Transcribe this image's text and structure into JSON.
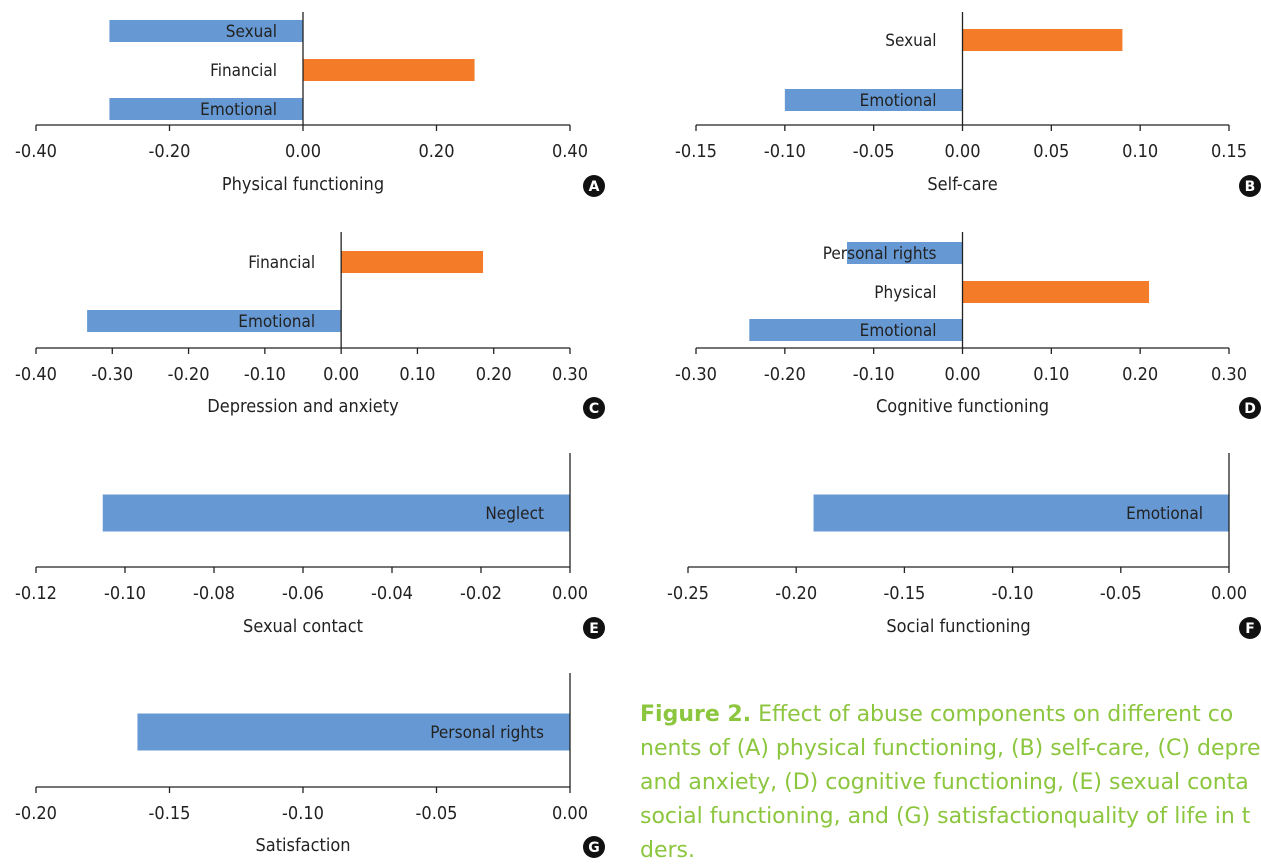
{
  "colors": {
    "negative": "#6699d3",
    "positive": "#f47c28",
    "axis": "#222222",
    "caption": "#8cc63f"
  },
  "chart_data": [
    {
      "panel": "A",
      "type": "bar",
      "orientation": "horizontal",
      "xlabel": "Physical functioning",
      "xlim": [
        -0.4,
        0.4
      ],
      "xticks": [
        -0.4,
        -0.2,
        0.0,
        0.2,
        0.4
      ],
      "xtick_labels": [
        "-0.40",
        "-0.20",
        "0.00",
        "0.20",
        "0.40"
      ],
      "categories": [
        "Sexual",
        "Financial",
        "Emotional"
      ],
      "values": [
        -0.29,
        0.257,
        -0.29
      ]
    },
    {
      "panel": "B",
      "type": "bar",
      "orientation": "horizontal",
      "xlabel": "Self-care",
      "xlim": [
        -0.15,
        0.15
      ],
      "xticks": [
        -0.15,
        -0.1,
        -0.05,
        0.0,
        0.05,
        0.1,
        0.15
      ],
      "xtick_labels": [
        "-0.15",
        "-0.10",
        "-0.05",
        "0.00",
        "0.05",
        "0.10",
        "0.15"
      ],
      "categories": [
        "Sexual",
        "Emotional"
      ],
      "values": [
        0.09,
        -0.1
      ]
    },
    {
      "panel": "C",
      "type": "bar",
      "orientation": "horizontal",
      "xlabel": "Depression and anxiety",
      "xlim": [
        -0.4,
        0.3
      ],
      "xticks": [
        -0.4,
        -0.3,
        -0.2,
        -0.1,
        0.0,
        0.1,
        0.2,
        0.3
      ],
      "xtick_labels": [
        "-0.40",
        "-0.30",
        "-0.20",
        "-0.10",
        "0.00",
        "0.10",
        "0.20",
        "0.30"
      ],
      "categories": [
        "Financial",
        "Emotional"
      ],
      "values": [
        0.186,
        -0.333
      ]
    },
    {
      "panel": "D",
      "type": "bar",
      "orientation": "horizontal",
      "xlabel": "Cognitive functioning",
      "xlim": [
        -0.3,
        0.3
      ],
      "xticks": [
        -0.3,
        -0.2,
        -0.1,
        0.0,
        0.1,
        0.2,
        0.3
      ],
      "xtick_labels": [
        "-0.30",
        "-0.20",
        "-0.10",
        "0.00",
        "0.10",
        "0.20",
        "0.30"
      ],
      "categories": [
        "Personal rights",
        "Physical",
        "Emotional"
      ],
      "values": [
        -0.13,
        0.21,
        -0.24
      ]
    },
    {
      "panel": "E",
      "type": "bar",
      "orientation": "horizontal",
      "xlabel": "Sexual contact",
      "xlim": [
        -0.12,
        0.0
      ],
      "xticks": [
        -0.12,
        -0.1,
        -0.08,
        -0.06,
        -0.04,
        -0.02,
        0.0
      ],
      "xtick_labels": [
        "-0.12",
        "-0.10",
        "-0.08",
        "-0.06",
        "-0.04",
        "-0.02",
        "0.00"
      ],
      "categories": [
        "Neglect"
      ],
      "values": [
        -0.105
      ]
    },
    {
      "panel": "F",
      "type": "bar",
      "orientation": "horizontal",
      "xlabel": "Social functioning",
      "xlim": [
        -0.25,
        0.0
      ],
      "xticks": [
        -0.25,
        -0.2,
        -0.15,
        -0.1,
        -0.05,
        0.0
      ],
      "xtick_labels": [
        "-0.25",
        "-0.20",
        "-0.15",
        "-0.10",
        "-0.05",
        "0.00"
      ],
      "categories": [
        "Emotional"
      ],
      "values": [
        -0.192
      ]
    },
    {
      "panel": "G",
      "type": "bar",
      "orientation": "horizontal",
      "xlabel": "Satisfaction",
      "xlim": [
        -0.2,
        0.0
      ],
      "xticks": [
        -0.2,
        -0.15,
        -0.1,
        -0.05,
        0.0
      ],
      "xtick_labels": [
        "-0.20",
        "-0.15",
        "-0.10",
        "-0.05",
        "0.00"
      ],
      "categories": [
        "Personal rights"
      ],
      "values": [
        -0.162
      ]
    }
  ],
  "caption": {
    "label": "Figure 2.",
    "line1": " Effect of abuse components on different co",
    "line2": "nents of (A) physical functioning, (B) self-care, (C) depre",
    "line3": "and anxiety, (D) cognitive functioning, (E) sexual conta",
    "line4": "social functioning, and (G) satisfactionquality of life in t",
    "line5": "ders."
  }
}
